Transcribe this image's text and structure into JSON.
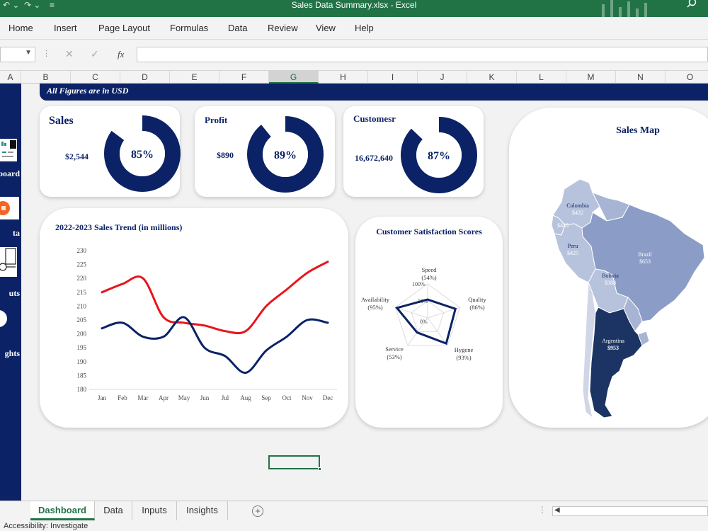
{
  "window": {
    "title": "Sales Data Summary.xlsx  -  Excel"
  },
  "ribbon": {
    "tabs": [
      "Home",
      "Insert",
      "Page Layout",
      "Formulas",
      "Data",
      "Review",
      "View",
      "Help"
    ]
  },
  "formula_bar": {
    "fx": "fx",
    "cancel": "✕",
    "enter": "✓",
    "name_box": "",
    "formula": ""
  },
  "columns": [
    "A",
    "B",
    "C",
    "D",
    "E",
    "F",
    "G",
    "H",
    "I",
    "J",
    "K",
    "L",
    "M",
    "N",
    "O"
  ],
  "selected_column": "G",
  "sidebar": {
    "items": [
      "board",
      "ta",
      "uts",
      "ghts"
    ]
  },
  "banner": "All Figures are in USD",
  "kpis": [
    {
      "title": "Sales",
      "value": "$2,544",
      "percent": "85%",
      "fraction": 0.85
    },
    {
      "title": "Profit",
      "value": "$890",
      "percent": "89%",
      "fraction": 0.89
    },
    {
      "title": "Customesr",
      "value": "16,672,640",
      "percent": "87%",
      "fraction": 0.87
    }
  ],
  "colors": {
    "navy": "#0b2266",
    "red": "#e8151b",
    "excel_green": "#217346",
    "map_light": "#b7c2dd",
    "map_mid": "#8b9cc6",
    "map_dark": "#1c3463"
  },
  "chart_data": [
    {
      "type": "line",
      "title": "2022-2023 Sales Trend (in millions)",
      "categories": [
        "Jan",
        "Feb",
        "Mar",
        "Apr",
        "May",
        "Jun",
        "Jul",
        "Aug",
        "Sep",
        "Oct",
        "Nov",
        "Dec"
      ],
      "series": [
        {
          "values": [
            215,
            218,
            220,
            206,
            204,
            203,
            201,
            201,
            210,
            216,
            222,
            226
          ],
          "color": "#e8151b"
        },
        {
          "values": [
            202,
            204,
            199,
            199,
            206,
            195,
            192,
            186,
            194,
            199,
            205,
            204
          ],
          "color": "#0b2266"
        }
      ],
      "ylim": [
        180,
        230
      ],
      "yticks": [
        180,
        185,
        190,
        195,
        200,
        205,
        210,
        215,
        220,
        225,
        230
      ],
      "grid": false
    },
    {
      "type": "radar",
      "title": "Customer Satisfaction Scores",
      "axes": [
        {
          "label": "Speed",
          "value_label": "(54%)",
          "value": 54
        },
        {
          "label": "Quality",
          "value_label": "(86%)",
          "value": 86
        },
        {
          "label": "Hygene",
          "value_label": "(93%)",
          "value": 93
        },
        {
          "label": "Service",
          "value_label": "(53%)",
          "value": 53
        },
        {
          "label": "Availability",
          "value_label": "(95%)",
          "value": 95
        }
      ],
      "rings": [
        "0%",
        "50%",
        "100%"
      ],
      "range": [
        0,
        100
      ]
    }
  ],
  "map": {
    "title": "Sales Map",
    "regions": [
      {
        "name": "Colombia",
        "value": "$432"
      },
      {
        "name": "",
        "value": "$445"
      },
      {
        "name": "Peru",
        "value": "$425"
      },
      {
        "name": "Brazil",
        "value": "$653"
      },
      {
        "name": "Bolivia",
        "value": "$388"
      },
      {
        "name": "Argentina",
        "value": "$953"
      }
    ]
  },
  "sheet_tabs": [
    "Dashboard",
    "Data",
    "Inputs",
    "Insights"
  ],
  "active_sheet": "Dashboard",
  "status": {
    "accessibility": "Accessibility: Investigate"
  }
}
